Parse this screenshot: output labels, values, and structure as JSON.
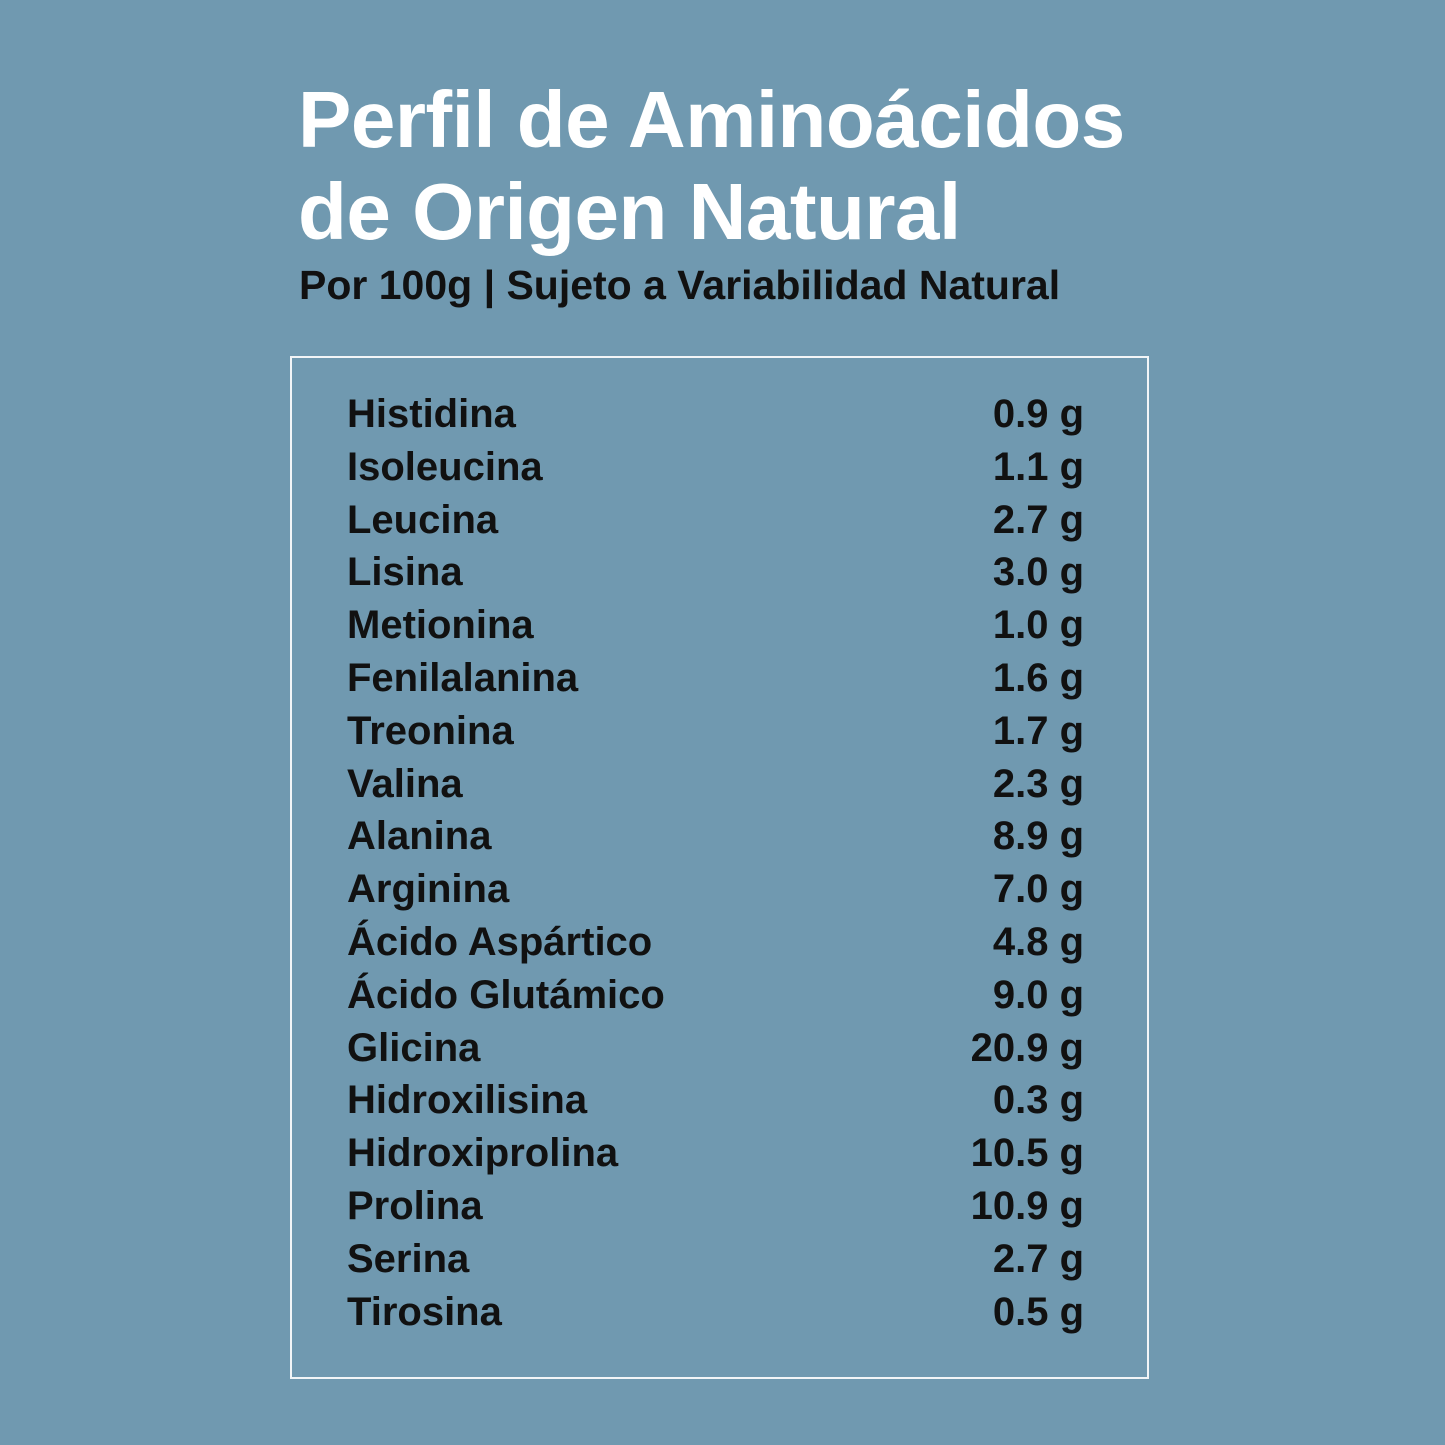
{
  "header": {
    "title_lines": [
      "Perfil de Aminoácidos",
      "de Origen Natural"
    ],
    "subtitle": "Por 100g | Sujeto a Variabilidad Natural"
  },
  "table": {
    "rows": [
      [
        "Histidina",
        "0.9 g"
      ],
      [
        "Isoleucina",
        "1.1 g"
      ],
      [
        "Leucina",
        "2.7 g"
      ],
      [
        "Lisina",
        "3.0 g"
      ],
      [
        "Metionina",
        "1.0 g"
      ],
      [
        "Fenilalanina",
        "1.6 g"
      ],
      [
        "Treonina",
        "1.7 g"
      ],
      [
        "Valina",
        "2.3 g"
      ],
      [
        "Alanina",
        "8.9 g"
      ],
      [
        "Arginina",
        "7.0 g"
      ],
      [
        "Ácido Aspártico",
        "4.8 g"
      ],
      [
        "Ácido Glutámico",
        "9.0 g"
      ],
      [
        "Glicina",
        "20.9 g"
      ],
      [
        "Hidroxilisina",
        "0.3 g"
      ],
      [
        "Hidroxiprolina",
        "10.5 g"
      ],
      [
        "Prolina",
        "10.9 g"
      ],
      [
        "Serina",
        "2.7 g"
      ],
      [
        "Tirosina",
        "0.5 g"
      ]
    ]
  }
}
